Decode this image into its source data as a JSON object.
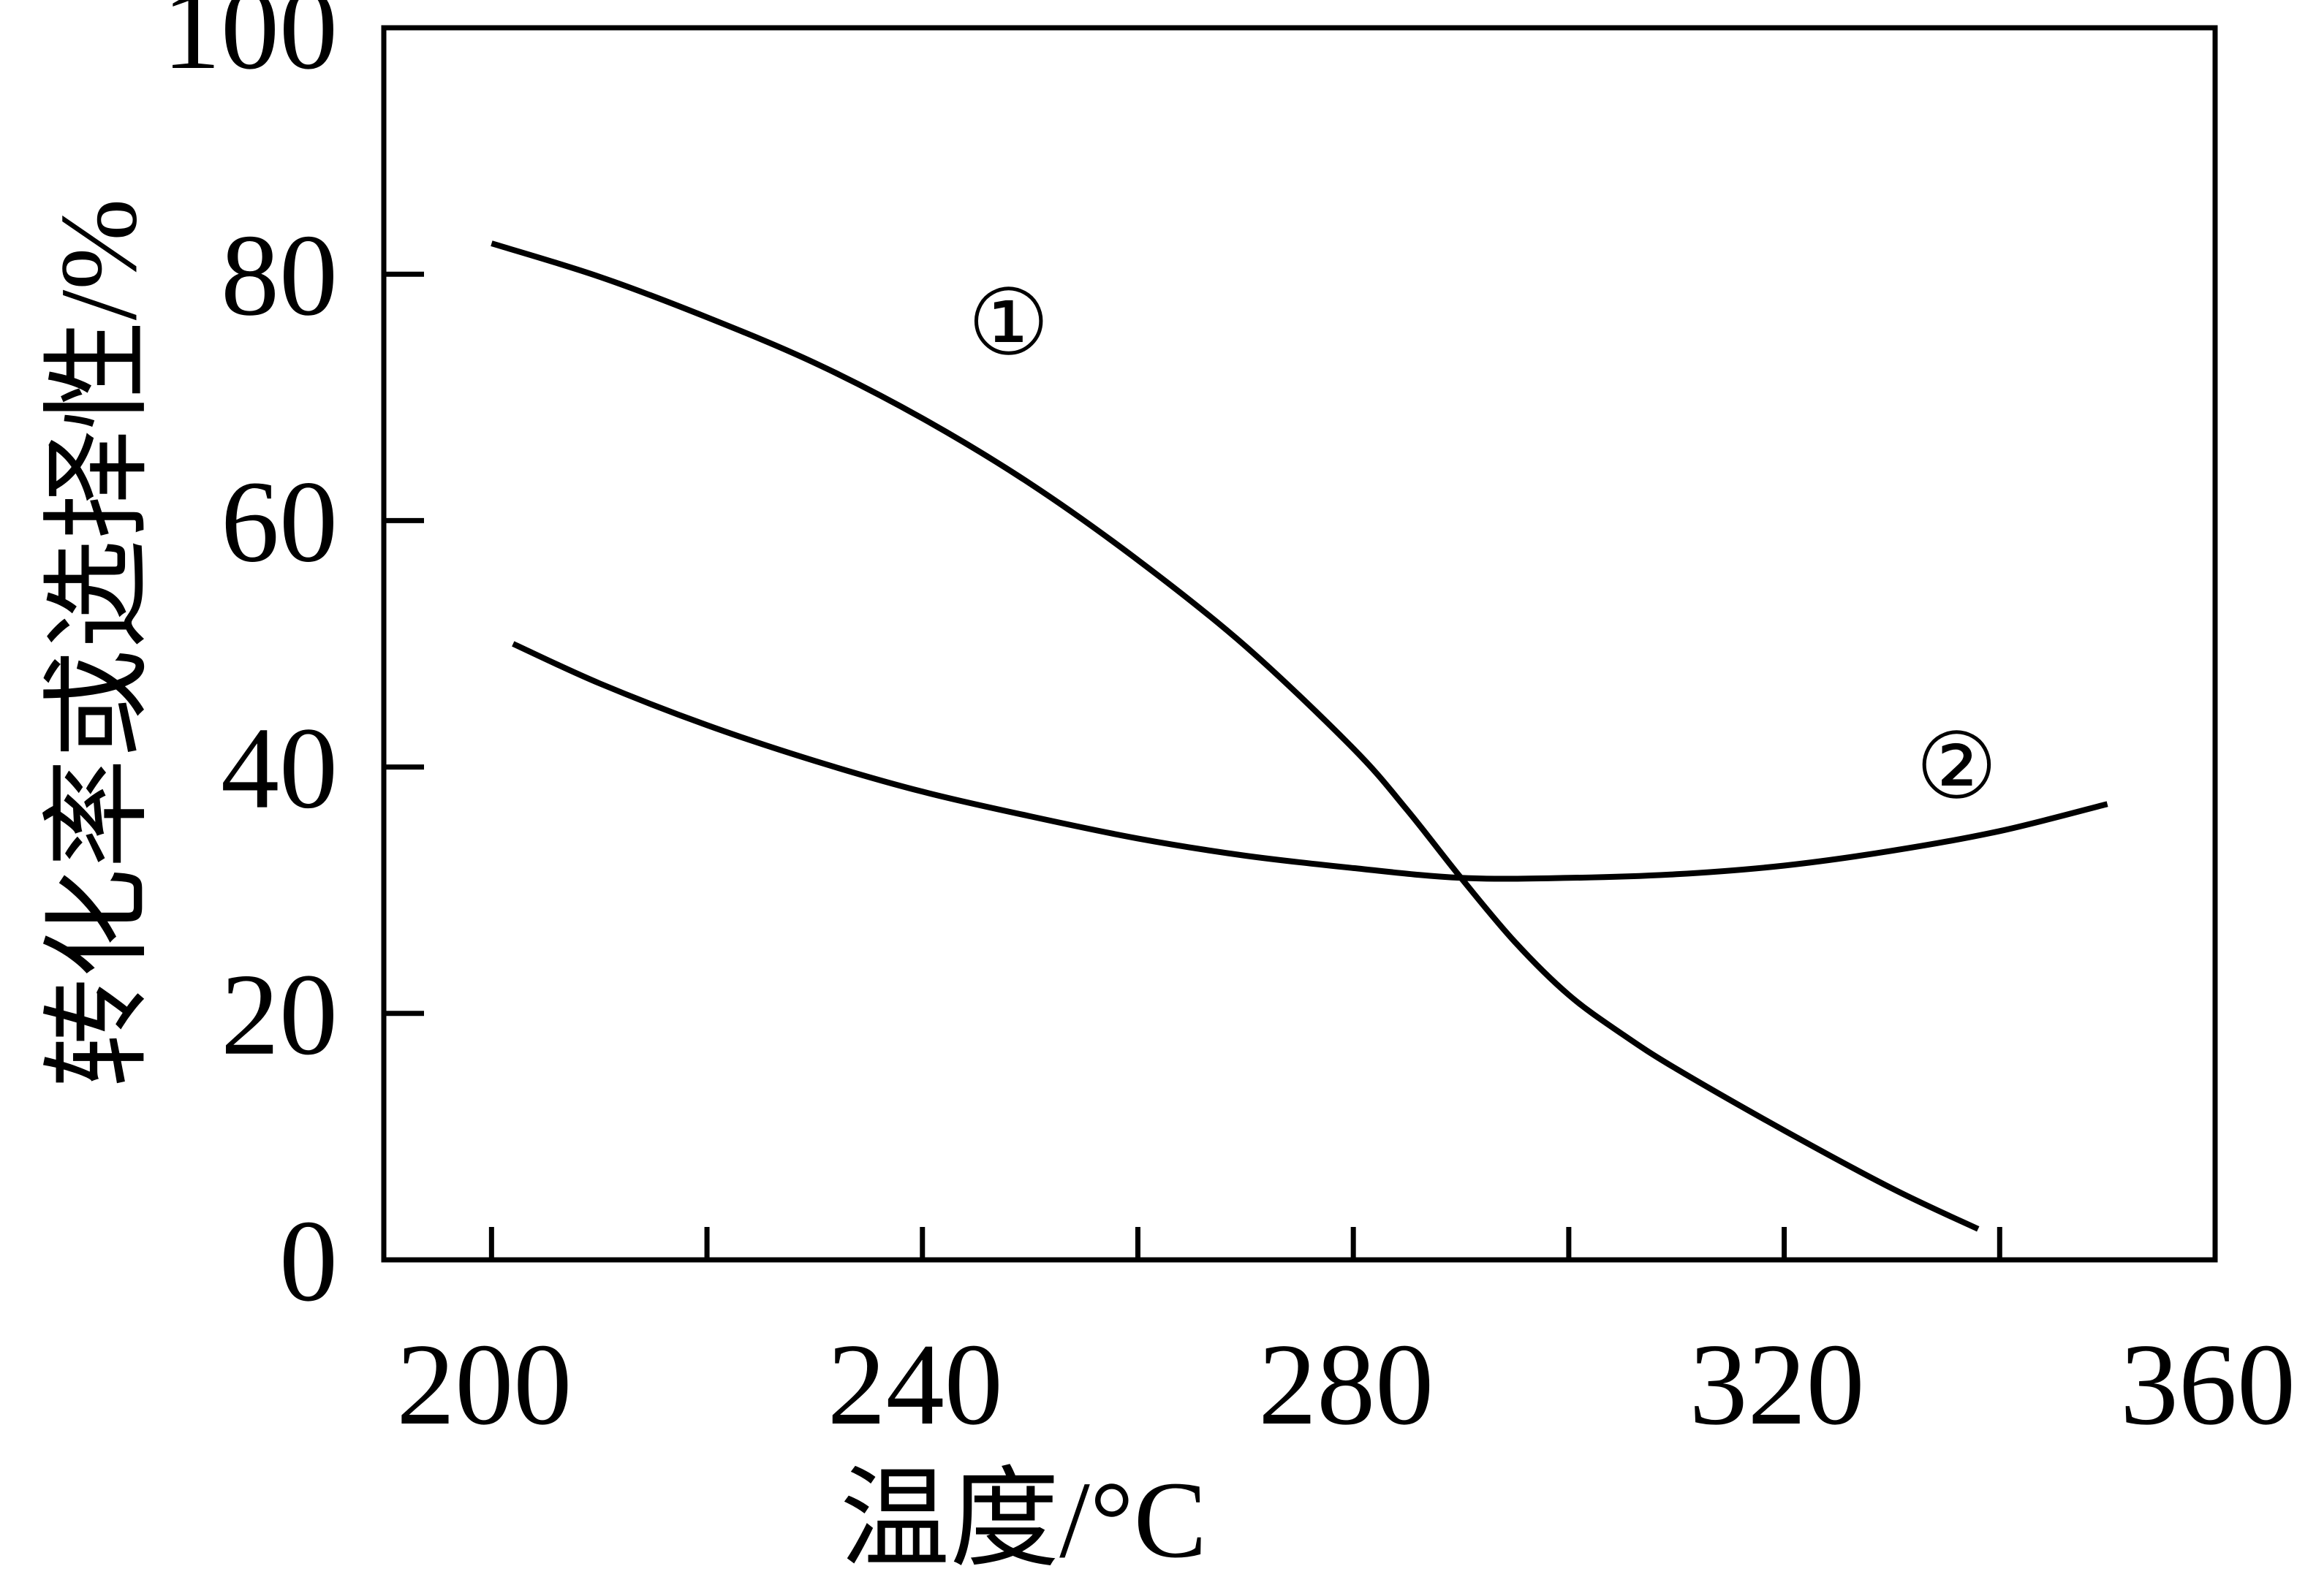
{
  "chart_data": {
    "type": "line",
    "xlabel": "温度/°C",
    "ylabel": "转化率或选择性/%",
    "xlim": [
      190,
      360
    ],
    "ylim": [
      0,
      100
    ],
    "x_ticks": [
      200,
      240,
      280,
      320,
      360
    ],
    "x_minor_ticks": [
      200,
      220,
      240,
      260,
      280,
      300,
      320,
      340
    ],
    "y_ticks": [
      0,
      20,
      40,
      60,
      80,
      100
    ],
    "grid": false,
    "legend": "none",
    "series": [
      {
        "name": "①",
        "x": [
          200,
          210,
          220,
          230,
          240,
          250,
          260,
          270,
          280,
          285,
          290,
          295,
          300,
          305,
          310,
          320,
          330,
          338
        ],
        "y": [
          82.5,
          79.8,
          76.5,
          72.8,
          68.3,
          63.0,
          56.8,
          49.8,
          41.5,
          36.5,
          31.0,
          25.8,
          21.5,
          18.3,
          15.5,
          10.5,
          5.8,
          2.5
        ]
      },
      {
        "name": "②",
        "x": [
          202,
          210,
          220,
          230,
          240,
          250,
          260,
          270,
          280,
          290,
          300,
          310,
          320,
          330,
          340,
          350
        ],
        "y": [
          50.0,
          46.8,
          43.4,
          40.5,
          38.0,
          36.0,
          34.2,
          32.8,
          31.8,
          31.0,
          31.0,
          31.3,
          32.0,
          33.2,
          34.8,
          37.0
        ]
      }
    ],
    "annotations": [
      {
        "text": "①",
        "x": 248,
        "y": 76
      },
      {
        "text": "②",
        "x": 336,
        "y": 40
      }
    ]
  }
}
